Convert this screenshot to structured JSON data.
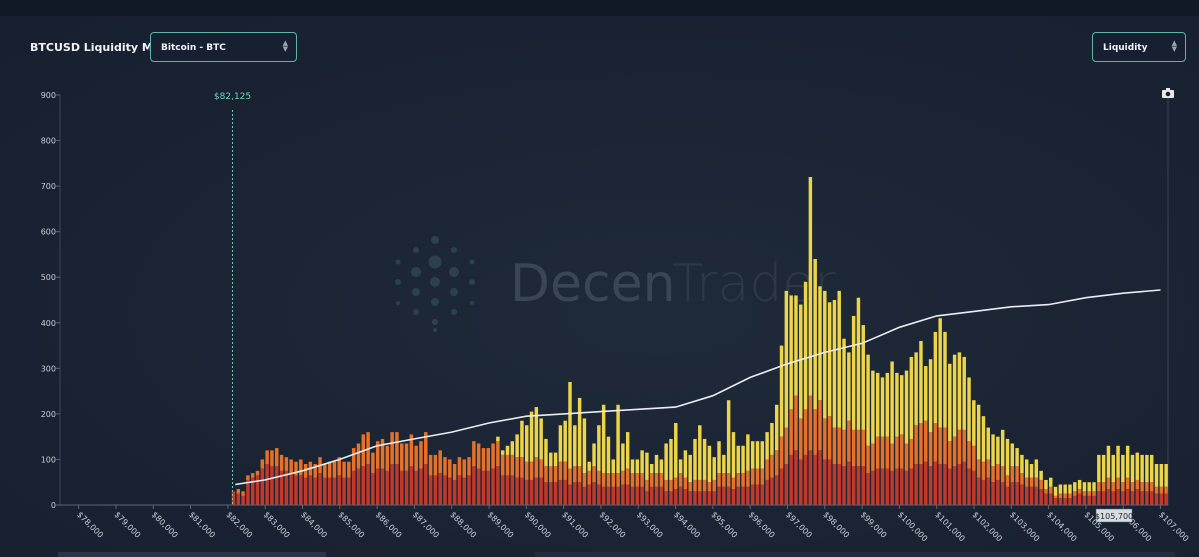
{
  "header": {
    "title": "BTCUSD Liquidity Map",
    "asset_select": "Bitcoin - BTC",
    "metric_select": "Liquidity",
    "select_arrow": "⌃⌄"
  },
  "watermark": {
    "text_left": "Decen",
    "text_right": "Trader"
  },
  "chart_data": {
    "type": "bar",
    "title": "BTCUSD Liquidity Map",
    "xlabel": "",
    "ylabel": "",
    "ylim": [
      0,
      900
    ],
    "xlim": [
      77500,
      107200
    ],
    "y_ticks": [
      0,
      100,
      200,
      300,
      400,
      500,
      600,
      700,
      800,
      900
    ],
    "x_ticks": [
      78000,
      79000,
      80000,
      81000,
      82000,
      83000,
      84000,
      85000,
      86000,
      87000,
      88000,
      89000,
      90000,
      91000,
      92000,
      93000,
      94000,
      95000,
      96000,
      97000,
      98000,
      99000,
      100000,
      101000,
      102000,
      103000,
      104000,
      105000,
      106000,
      107000
    ],
    "x_tick_labels": [
      "$78,000",
      "$79,000",
      "$80,000",
      "$81,000",
      "$82,000",
      "$83,000",
      "$84,000",
      "$85,000",
      "$86,000",
      "$87,000",
      "$88,000",
      "$89,000",
      "$90,000",
      "$91,000",
      "$92,000",
      "$93,000",
      "$94,000",
      "$95,000",
      "$96,000",
      "$97,000",
      "$98,000",
      "$99,000",
      "$100,000",
      "$101,000",
      "$102,000",
      "$103,000",
      "$104,000",
      "$105,000",
      "$106,000",
      "$107,000"
    ],
    "current_price": {
      "value": 82125,
      "label": "$82,125"
    },
    "cursor_label": {
      "value": 105700,
      "label": "$105,700"
    },
    "grid": false,
    "stack_colors": [
      "#c0392b",
      "#e8712a",
      "#ecd548"
    ],
    "cumulative_line": {
      "color": "#e9eef0",
      "points": [
        [
          82200,
          45
        ],
        [
          83000,
          55
        ],
        [
          84000,
          75
        ],
        [
          85000,
          100
        ],
        [
          86000,
          130
        ],
        [
          87000,
          145
        ],
        [
          88000,
          160
        ],
        [
          89000,
          180
        ],
        [
          90000,
          195
        ],
        [
          91000,
          200
        ],
        [
          92000,
          205
        ],
        [
          93000,
          210
        ],
        [
          94000,
          215
        ],
        [
          95000,
          240
        ],
        [
          96000,
          280
        ],
        [
          97000,
          310
        ],
        [
          98000,
          335
        ],
        [
          99000,
          355
        ],
        [
          100000,
          390
        ],
        [
          101000,
          415
        ],
        [
          102000,
          425
        ],
        [
          103000,
          435
        ],
        [
          104000,
          440
        ],
        [
          105000,
          455
        ],
        [
          106000,
          465
        ],
        [
          107000,
          472
        ]
      ]
    },
    "series": [
      {
        "values": [
          30,
          25,
          20,
          55,
          60,
          65,
          80,
          90,
          85,
          85,
          75,
          75,
          70,
          65,
          65,
          60,
          65,
          60,
          70,
          60,
          60,
          60,
          65,
          60,
          60,
          75,
          80,
          85,
          90,
          70,
          80,
          80,
          75,
          90,
          90,
          75,
          75,
          85,
          75,
          80,
          90,
          65,
          65,
          70,
          65,
          60,
          55,
          65,
          60,
          65,
          85,
          80,
          75,
          75,
          80,
          85,
          65,
          65,
          65,
          60,
          60,
          55,
          55,
          60,
          60,
          50,
          50,
          50,
          55,
          55,
          45,
          50,
          50,
          40,
          45,
          50,
          45,
          40,
          40,
          40,
          40,
          45,
          45,
          40,
          40,
          40,
          30,
          40,
          40,
          40,
          30,
          30,
          35,
          40,
          35,
          30,
          30,
          30,
          30,
          30,
          30,
          40,
          40,
          40,
          35,
          40,
          40,
          40,
          45,
          45,
          45,
          55,
          60,
          65,
          80,
          90,
          110,
          120,
          100,
          110,
          120,
          110,
          120,
          100,
          100,
          90,
          90,
          85,
          95,
          85,
          85,
          85,
          70,
          75,
          80,
          80,
          80,
          75,
          80,
          80,
          75,
          80,
          90,
          90,
          95,
          85,
          95,
          90,
          90,
          80,
          85,
          90,
          95,
          80,
          75,
          60,
          55,
          60,
          50,
          55,
          50,
          40,
          50,
          50,
          45,
          40,
          40,
          40,
          35,
          25,
          25,
          15,
          15,
          15,
          15,
          20,
          25,
          20,
          20,
          20,
          30,
          30,
          35,
          30,
          35,
          30,
          35,
          30,
          35,
          30,
          30,
          30,
          25,
          25,
          25
        ]
      },
      {
        "values": [
          0,
          10,
          10,
          10,
          10,
          10,
          20,
          30,
          35,
          40,
          35,
          30,
          30,
          30,
          35,
          30,
          30,
          30,
          35,
          30,
          35,
          35,
          40,
          35,
          35,
          50,
          55,
          70,
          70,
          45,
          60,
          65,
          55,
          70,
          70,
          60,
          60,
          70,
          55,
          60,
          70,
          45,
          45,
          50,
          40,
          40,
          35,
          40,
          40,
          40,
          55,
          55,
          50,
          50,
          55,
          55,
          45,
          45,
          45,
          45,
          45,
          40,
          40,
          45,
          40,
          35,
          35,
          35,
          40,
          40,
          35,
          35,
          35,
          30,
          30,
          35,
          30,
          30,
          30,
          30,
          30,
          30,
          35,
          30,
          30,
          30,
          25,
          30,
          30,
          30,
          25,
          25,
          25,
          30,
          25,
          20,
          25,
          25,
          25,
          20,
          25,
          30,
          30,
          30,
          25,
          30,
          30,
          35,
          35,
          35,
          35,
          45,
          50,
          55,
          70,
          80,
          100,
          120,
          90,
          100,
          120,
          100,
          110,
          90,
          95,
          80,
          80,
          80,
          90,
          80,
          80,
          80,
          60,
          60,
          70,
          70,
          70,
          60,
          70,
          75,
          60,
          65,
          85,
          90,
          90,
          75,
          85,
          80,
          80,
          60,
          65,
          75,
          70,
          60,
          55,
          40,
          40,
          40,
          35,
          35,
          35,
          25,
          35,
          35,
          25,
          20,
          20,
          20,
          20,
          10,
          15,
          5,
          10,
          10,
          10,
          10,
          10,
          10,
          10,
          10,
          20,
          20,
          25,
          20,
          25,
          20,
          25,
          20,
          20,
          20,
          20,
          20,
          15,
          15,
          15
        ]
      },
      {
        "values": [
          0,
          0,
          0,
          0,
          0,
          0,
          0,
          0,
          0,
          0,
          0,
          0,
          0,
          0,
          0,
          0,
          0,
          0,
          0,
          0,
          0,
          0,
          0,
          0,
          0,
          0,
          0,
          0,
          0,
          0,
          0,
          0,
          0,
          0,
          0,
          0,
          0,
          0,
          0,
          0,
          0,
          0,
          0,
          0,
          0,
          0,
          0,
          0,
          0,
          0,
          0,
          0,
          0,
          0,
          0,
          10,
          10,
          20,
          30,
          50,
          80,
          80,
          110,
          110,
          90,
          60,
          30,
          30,
          80,
          90,
          190,
          90,
          150,
          120,
          20,
          50,
          100,
          150,
          80,
          30,
          150,
          60,
          80,
          30,
          30,
          50,
          60,
          20,
          40,
          30,
          80,
          90,
          120,
          30,
          60,
          60,
          90,
          120,
          90,
          80,
          50,
          70,
          40,
          160,
          100,
          60,
          60,
          80,
          60,
          60,
          60,
          60,
          70,
          100,
          200,
          300,
          250,
          220,
          250,
          280,
          480,
          330,
          250,
          280,
          250,
          280,
          300,
          200,
          150,
          250,
          290,
          230,
          200,
          160,
          140,
          130,
          140,
          180,
          140,
          130,
          160,
          180,
          160,
          180,
          120,
          160,
          200,
          240,
          210,
          170,
          180,
          170,
          160,
          140,
          100,
          120,
          100,
          70,
          70,
          60,
          80,
          80,
          50,
          40,
          40,
          40,
          30,
          40,
          20,
          20,
          20,
          20,
          20,
          20,
          20,
          20,
          20,
          20,
          20,
          20,
          60,
          60,
          70,
          60,
          70,
          60,
          70,
          60,
          60,
          60,
          60,
          60,
          50,
          50,
          50
        ]
      }
    ]
  }
}
